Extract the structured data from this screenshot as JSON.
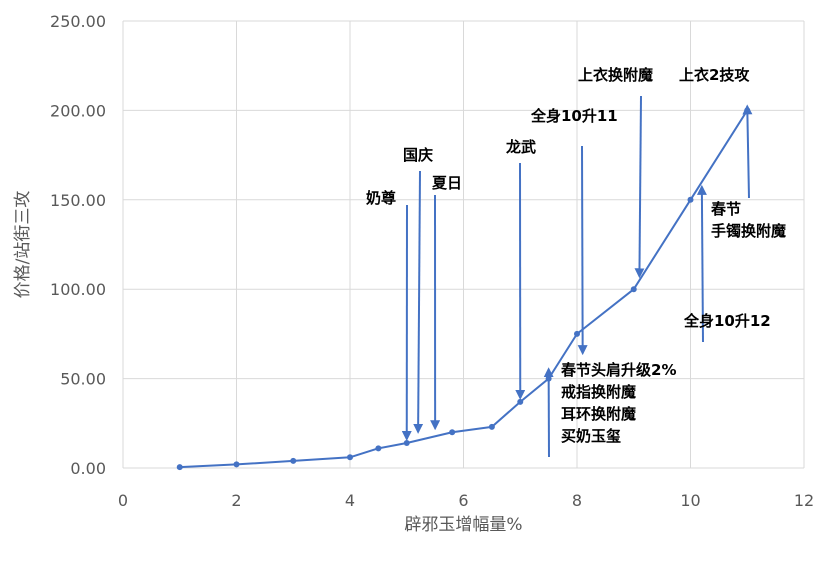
{
  "chart_data": {
    "type": "scatter",
    "mode": "lines+markers",
    "title": "",
    "xlabel": "辟邪玉增幅量%",
    "ylabel": "价格/站街三攻",
    "xlim": [
      0,
      12
    ],
    "ylim": [
      0,
      250
    ],
    "x_ticks": [
      0,
      2,
      4,
      6,
      8,
      10,
      12
    ],
    "y_ticks": [
      0,
      50,
      100,
      150,
      200,
      250
    ],
    "x_tick_labels": [
      "0",
      "2",
      "4",
      "6",
      "8",
      "10",
      "12"
    ],
    "y_tick_labels": [
      "0.00",
      "50.00",
      "100.00",
      "150.00",
      "200.00",
      "250.00"
    ],
    "grid": "vertical and horizontal major gridlines",
    "legend": "none",
    "series": [
      {
        "color": "#4472c4",
        "points": [
          {
            "x": 1,
            "y": 0.5
          },
          {
            "x": 2,
            "y": 2
          },
          {
            "x": 3,
            "y": 4
          },
          {
            "x": 4,
            "y": 6
          },
          {
            "x": 4.5,
            "y": 11
          },
          {
            "x": 5,
            "y": 14
          },
          {
            "x": 5.8,
            "y": 20
          },
          {
            "x": 6.5,
            "y": 23
          },
          {
            "x": 7,
            "y": 37
          },
          {
            "x": 7.5,
            "y": 50
          },
          {
            "x": 8,
            "y": 75
          },
          {
            "x": 9,
            "y": 100
          },
          {
            "x": 10,
            "y": 150
          },
          {
            "x": 11,
            "y": 200
          }
        ]
      }
    ],
    "annotations": [
      {
        "lines": [
          "奶尊"
        ],
        "arrow_x": 5.0,
        "arrow_y": 14
      },
      {
        "lines": [
          "国庆"
        ],
        "arrow_x": 5.2,
        "arrow_y": 18
      },
      {
        "lines": [
          "夏日"
        ],
        "arrow_x": 5.5,
        "arrow_y": 20
      },
      {
        "lines": [
          "龙武"
        ],
        "arrow_x": 7.0,
        "arrow_y": 37
      },
      {
        "lines": [
          "全身10升11"
        ],
        "arrow_x": 8.1,
        "arrow_y": 62
      },
      {
        "lines": [
          "上衣换附魔"
        ],
        "arrow_x": 9.1,
        "arrow_y": 105
      },
      {
        "lines": [
          "上衣2技攻"
        ],
        "arrow_x": 11.0,
        "arrow_y": 200
      },
      {
        "lines": [
          "春节",
          "手镯换附魔"
        ],
        "arrow_x": 11.0,
        "arrow_y": 200
      },
      {
        "lines": [
          "全身10升12"
        ],
        "arrow_x": 10.2,
        "arrow_y": 155
      },
      {
        "lines": [
          "春节头肩升级2%",
          "戒指换附魔",
          "耳环换附魔",
          "买奶玉玺"
        ],
        "arrow_x": 7.5,
        "arrow_y": 53
      }
    ]
  }
}
